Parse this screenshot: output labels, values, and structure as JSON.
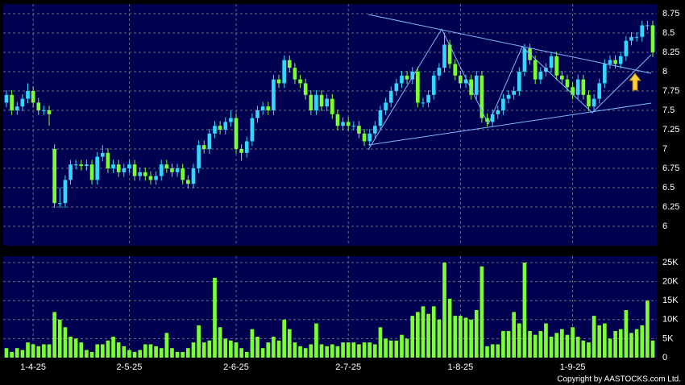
{
  "chart_data": {
    "type": "candlestick",
    "categories": [
      null,
      null,
      null,
      null,
      null,
      "1-4-25",
      null,
      null,
      null,
      null,
      null,
      null,
      null,
      null,
      null,
      null,
      null,
      null,
      null,
      null,
      null,
      null,
      null,
      "2-5-25",
      null,
      null,
      null,
      null,
      null,
      null,
      null,
      null,
      null,
      null,
      null,
      null,
      null,
      null,
      null,
      null,
      null,
      null,
      null,
      "2-6-25",
      null,
      null,
      null,
      null,
      null,
      null,
      null,
      null,
      null,
      null,
      null,
      null,
      null,
      null,
      null,
      null,
      null,
      null,
      null,
      null,
      "2-7-25",
      null,
      null,
      null,
      null,
      null,
      null,
      null,
      null,
      null,
      null,
      null,
      null,
      null,
      null,
      null,
      null,
      null,
      null,
      null,
      null,
      "1-8-25",
      null,
      null,
      null,
      null,
      null,
      null,
      null,
      null,
      null,
      null,
      null,
      null,
      null,
      null,
      null,
      null,
      null,
      null,
      null,
      null,
      "1-9-25",
      null,
      null,
      null,
      null,
      null,
      null,
      null,
      null,
      null,
      null,
      null,
      null,
      null,
      null,
      null
    ],
    "open": [
      7.6,
      7.7,
      7.5,
      7.55,
      7.65,
      7.75,
      7.6,
      7.5,
      7.5,
      7.0,
      6.3,
      6.3,
      6.6,
      6.8,
      6.8,
      6.78,
      6.8,
      6.6,
      6.9,
      6.95,
      6.75,
      6.8,
      6.7,
      6.75,
      6.8,
      6.65,
      6.7,
      6.65,
      6.6,
      6.65,
      6.8,
      6.75,
      6.7,
      6.75,
      6.6,
      6.55,
      6.75,
      7.05,
      7.0,
      7.2,
      7.3,
      7.25,
      7.35,
      7.4,
      7.0,
      6.95,
      7.1,
      7.4,
      7.5,
      7.55,
      7.5,
      7.9,
      7.85,
      8.15,
      8.05,
      7.9,
      7.85,
      7.7,
      7.5,
      7.7,
      7.55,
      7.65,
      7.45,
      7.3,
      7.35,
      7.3,
      7.3,
      7.2,
      7.1,
      7.2,
      7.3,
      7.5,
      7.6,
      7.75,
      7.85,
      7.95,
      7.9,
      8.0,
      7.6,
      7.6,
      7.7,
      7.95,
      8.05,
      8.35,
      8.1,
      7.95,
      7.85,
      7.9,
      7.7,
      7.95,
      7.4,
      7.35,
      7.45,
      7.5,
      7.65,
      7.7,
      7.75,
      8.0,
      8.3,
      8.15,
      7.9,
      8.0,
      8.05,
      8.2,
      7.95,
      7.9,
      7.8,
      7.7,
      7.9,
      7.7,
      7.55,
      7.65,
      7.85,
      8.1,
      8.15,
      8.1,
      8.2,
      8.4,
      8.45,
      8.45,
      8.6,
      8.6
    ],
    "high": [
      7.76,
      7.76,
      7.61,
      7.71,
      7.85,
      7.81,
      7.66,
      7.56,
      7.56,
      7.06,
      6.5,
      6.66,
      6.86,
      6.86,
      6.86,
      6.86,
      6.86,
      6.96,
      7.05,
      7.01,
      6.86,
      6.86,
      6.81,
      6.86,
      6.86,
      6.76,
      6.76,
      6.71,
      6.71,
      6.86,
      6.86,
      6.81,
      6.81,
      6.81,
      6.66,
      6.81,
      7.11,
      7.11,
      7.26,
      7.36,
      7.36,
      7.41,
      7.5,
      7.46,
      7.06,
      7.16,
      7.46,
      7.56,
      7.61,
      7.61,
      7.96,
      7.96,
      8.21,
      8.21,
      8.11,
      7.96,
      7.91,
      7.76,
      7.76,
      7.76,
      7.71,
      7.71,
      7.51,
      7.41,
      7.41,
      7.36,
      7.36,
      7.26,
      7.26,
      7.36,
      7.56,
      7.66,
      7.81,
      7.91,
      8.01,
      8.01,
      8.06,
      8.06,
      7.66,
      7.76,
      8.01,
      8.11,
      8.5,
      8.41,
      8.16,
      8.01,
      7.96,
      7.96,
      8.01,
      8.01,
      7.46,
      7.51,
      7.56,
      7.71,
      7.76,
      7.81,
      8.06,
      8.36,
      8.36,
      8.21,
      8.06,
      8.11,
      8.26,
      8.26,
      8.01,
      7.96,
      7.86,
      7.96,
      7.96,
      7.76,
      7.71,
      7.91,
      8.16,
      8.21,
      8.21,
      8.26,
      8.46,
      8.51,
      8.51,
      8.66,
      8.66,
      8.66
    ],
    "low": [
      7.54,
      7.44,
      7.44,
      7.49,
      7.59,
      7.54,
      7.44,
      7.44,
      7.3,
      6.24,
      6.24,
      6.24,
      6.54,
      6.74,
      6.72,
      6.72,
      6.54,
      6.54,
      6.84,
      6.69,
      6.69,
      6.64,
      6.64,
      6.69,
      6.59,
      6.59,
      6.59,
      6.54,
      6.54,
      6.59,
      6.69,
      6.64,
      6.64,
      6.54,
      6.49,
      6.49,
      6.69,
      6.94,
      6.94,
      7.14,
      7.19,
      7.19,
      7.29,
      6.94,
      6.85,
      6.89,
      7.04,
      7.34,
      7.44,
      7.44,
      7.44,
      7.79,
      7.79,
      7.99,
      7.84,
      7.79,
      7.64,
      7.44,
      7.44,
      7.49,
      7.49,
      7.39,
      7.24,
      7.24,
      7.24,
      7.24,
      7.14,
      7.04,
      7.04,
      7.14,
      7.24,
      7.44,
      7.54,
      7.69,
      7.79,
      7.84,
      7.84,
      7.54,
      7.54,
      7.54,
      7.64,
      7.89,
      7.99,
      8.04,
      7.89,
      7.79,
      7.79,
      7.64,
      7.64,
      7.34,
      7.29,
      7.29,
      7.39,
      7.44,
      7.59,
      7.64,
      7.69,
      7.94,
      8.09,
      7.84,
      7.84,
      7.94,
      7.99,
      7.89,
      7.84,
      7.74,
      7.64,
      7.64,
      7.64,
      7.49,
      7.49,
      7.59,
      7.79,
      8.04,
      8.04,
      8.04,
      8.14,
      8.34,
      8.39,
      8.39,
      8.54,
      8.19
    ],
    "close": [
      7.7,
      7.5,
      7.55,
      7.65,
      7.75,
      7.6,
      7.5,
      7.5,
      7.45,
      6.3,
      6.3,
      6.6,
      6.8,
      6.8,
      6.78,
      6.8,
      6.6,
      6.9,
      6.95,
      6.75,
      6.8,
      6.7,
      6.75,
      6.8,
      6.65,
      6.7,
      6.65,
      6.6,
      6.65,
      6.8,
      6.75,
      6.7,
      6.75,
      6.6,
      6.55,
      6.75,
      7.05,
      7.0,
      7.2,
      7.3,
      7.25,
      7.35,
      7.4,
      7.0,
      6.95,
      7.1,
      7.4,
      7.5,
      7.55,
      7.5,
      7.9,
      7.85,
      8.15,
      8.05,
      7.9,
      7.85,
      7.7,
      7.5,
      7.7,
      7.55,
      7.65,
      7.45,
      7.3,
      7.35,
      7.3,
      7.3,
      7.2,
      7.1,
      7.2,
      7.3,
      7.5,
      7.6,
      7.75,
      7.85,
      7.95,
      7.9,
      8.0,
      7.6,
      7.6,
      7.7,
      7.95,
      8.05,
      8.35,
      8.1,
      7.95,
      7.85,
      7.9,
      7.7,
      7.95,
      7.4,
      7.35,
      7.45,
      7.5,
      7.65,
      7.7,
      7.75,
      8.0,
      8.3,
      8.15,
      7.9,
      8.0,
      8.05,
      8.2,
      7.95,
      7.9,
      7.8,
      7.7,
      7.9,
      7.7,
      7.55,
      7.65,
      7.85,
      8.1,
      8.15,
      8.1,
      8.2,
      8.4,
      8.45,
      8.45,
      8.6,
      8.6,
      8.25
    ],
    "volume": [
      2500,
      1500,
      2500,
      2000,
      4000,
      3500,
      3000,
      3500,
      3500,
      12000,
      10000,
      8000,
      5500,
      5000,
      4000,
      2000,
      1500,
      3500,
      3500,
      4500,
      5500,
      4000,
      3000,
      2000,
      1500,
      2000,
      3500,
      3500,
      3000,
      2500,
      6500,
      2500,
      1500,
      1500,
      2500,
      4000,
      8500,
      4000,
      4500,
      21000,
      8000,
      5000,
      4500,
      4000,
      2500,
      1500,
      7500,
      5500,
      2500,
      4000,
      5500,
      4500,
      10000,
      7500,
      4000,
      3000,
      2500,
      3500,
      9000,
      3500,
      3000,
      3500,
      3000,
      4000,
      4000,
      4000,
      3500,
      4000,
      4000,
      3500,
      8000,
      5000,
      4500,
      4500,
      6000,
      5000,
      11000,
      12000,
      13500,
      11500,
      13500,
      10000,
      25000,
      15500,
      11000,
      11000,
      10500,
      10000,
      12500,
      24000,
      3000,
      3500,
      3500,
      7000,
      7000,
      12000,
      9000,
      25000,
      7000,
      6000,
      7000,
      9000,
      5500,
      6500,
      7500,
      6000,
      8000,
      5500,
      4500,
      4000,
      11000,
      8500,
      9000,
      5000,
      7000,
      7500,
      12500,
      6500,
      7500,
      8500,
      15000,
      4500
    ],
    "ylim": [
      5.75,
      8.875
    ],
    "yticks": [
      6,
      6.25,
      6.5,
      6.75,
      7,
      7.25,
      7.5,
      7.75,
      8,
      8.25,
      8.5,
      8.75
    ],
    "volume_ylim": [
      0,
      26700
    ],
    "volume_yticks": [
      0,
      {
        "value": 5000,
        "label": "5K"
      },
      {
        "value": 10000,
        "label": "10K"
      },
      {
        "value": 15000,
        "label": "15K"
      },
      {
        "value": 20000,
        "label": "20K"
      },
      {
        "value": 25000,
        "label": "25K"
      }
    ],
    "up_color": "#33d6ff",
    "down_color": "#7cff2e",
    "volume_color": "#7cff2e",
    "grid": true
  },
  "copyright": "Copyright by AASTOCKS.com Ltd."
}
